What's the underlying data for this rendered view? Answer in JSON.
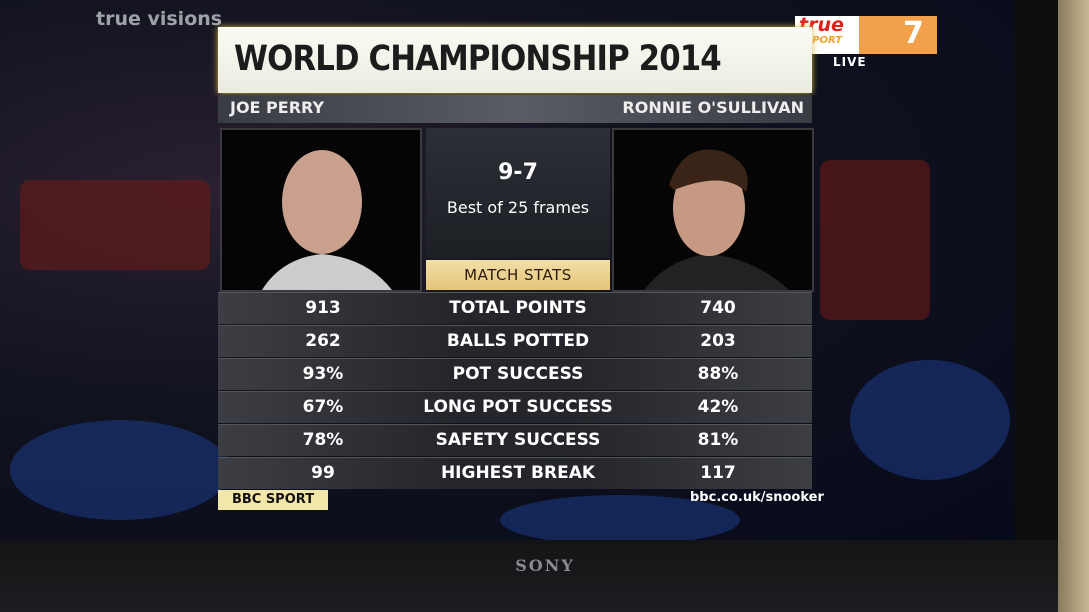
{
  "tv": {
    "brand": "SONY"
  },
  "broadcast": {
    "channel": "true visions",
    "badge": {
      "brand": "true",
      "sub": "SPORT",
      "number": "7"
    },
    "live": "LIVE"
  },
  "graphic": {
    "title": "WORLD CHAMPIONSHIP 2014",
    "players": [
      "JOE PERRY",
      "RONNIE O'SULLIVAN"
    ],
    "score": "9-7",
    "format": "Best of 25 frames",
    "section": "MATCH STATS",
    "table": {
      "rows": [
        [
          "913",
          "TOTAL POINTS",
          "740"
        ],
        [
          "262",
          "BALLS POTTED",
          "203"
        ],
        [
          "93%",
          "POT SUCCESS",
          "88%"
        ],
        [
          "67%",
          "LONG POT SUCCESS",
          "42%"
        ],
        [
          "78%",
          "SAFETY SUCCESS",
          "81%"
        ],
        [
          "99",
          "HIGHEST BREAK",
          "117"
        ]
      ]
    },
    "footer": {
      "logo": "BBC SPORT",
      "url": "bbc.co.uk/snooker"
    }
  }
}
